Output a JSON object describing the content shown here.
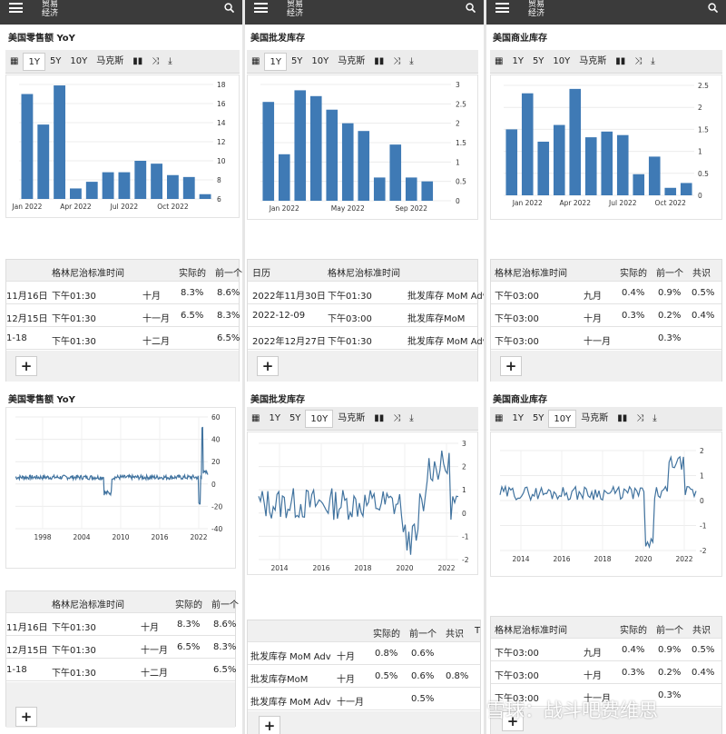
{
  "topbar": {
    "line1": "贸易",
    "line2": "经济"
  },
  "toolbar": {
    "y1": "1Y",
    "y5": "5Y",
    "y10": "10Y",
    "max": "马克斯"
  },
  "add_label": "+",
  "watermark": "雪球：战斗吧费维思",
  "colors": {
    "bar": "#3f7ab5",
    "line": "#41739f",
    "header": "#3b3b3b"
  },
  "p1": {
    "title": "美国零售额 YoY",
    "chart_data": {
      "type": "bar",
      "categories": [
        "Jan 2022",
        "Feb 2022",
        "Mar 2022",
        "Apr 2022",
        "May 2022",
        "Jun 2022",
        "Jul 2022",
        "Aug 2022",
        "Sep 2022",
        "Oct 2022",
        "Nov 2022",
        "Dec 2022"
      ],
      "values": [
        17.0,
        13.8,
        17.9,
        7.1,
        7.8,
        8.8,
        8.8,
        10.0,
        9.7,
        8.5,
        8.3,
        6.5
      ],
      "xticks": [
        "Jan 2022",
        "Apr 2022",
        "Jul 2022",
        "Oct 2022"
      ],
      "yticks": [
        "18",
        "16",
        "14",
        "12",
        "10",
        "8",
        "6"
      ],
      "ylim": [
        6,
        18
      ]
    },
    "table": {
      "header": [
        "格林尼治标准时间",
        "实际的",
        "前一个"
      ],
      "rows": [
        [
          "11月16日",
          "下午01:30",
          "十月",
          "8.3%",
          "8.6%"
        ],
        [
          "12月15日",
          "下午01:30",
          "十一月",
          "6.5%",
          "8.3%"
        ],
        [
          "1-18",
          "下午01:30",
          "十二月",
          "",
          "6.5%"
        ]
      ]
    }
  },
  "p2": {
    "title": "美国批发库存",
    "chart_data": {
      "type": "bar",
      "categories": [
        "Dec 2021",
        "Jan 2022",
        "Feb 2022",
        "Mar 2022",
        "Apr 2022",
        "May 2022",
        "Jun 2022",
        "Jul 2022",
        "Aug 2022",
        "Sep 2022",
        "Oct 2022",
        "Nov 2022"
      ],
      "values": [
        2.55,
        1.2,
        2.85,
        2.7,
        2.35,
        2.0,
        1.8,
        0.6,
        1.45,
        0.6,
        0.5,
        0.0
      ],
      "xticks": [
        "Jan 2022",
        "May 2022",
        "Sep 2022"
      ],
      "yticks": [
        "3",
        "2.5",
        "2",
        "1.5",
        "1",
        "0.5",
        "0"
      ],
      "ylim": [
        0,
        3
      ]
    },
    "table": {
      "header": [
        "日历",
        "格林尼治标准时间"
      ],
      "rows": [
        [
          "2022年11月30日",
          "下午01:30",
          "批发库存 MoM Adv"
        ],
        [
          "2022-12-09",
          "下午03:00",
          "批发库存MoM"
        ],
        [
          "2022年12月27日",
          "下午01:30",
          "批发库存 MoM Adv"
        ]
      ]
    }
  },
  "p3": {
    "title": "美国商业库存",
    "chart_data": {
      "type": "bar",
      "categories": [
        "Dec 2021",
        "Jan 2022",
        "Feb 2022",
        "Mar 2022",
        "Apr 2022",
        "May 2022",
        "Jun 2022",
        "Jul 2022",
        "Aug 2022",
        "Sep 2022",
        "Oct 2022",
        "Nov 2022"
      ],
      "values": [
        1.5,
        2.32,
        1.22,
        1.6,
        2.42,
        1.32,
        1.45,
        1.37,
        0.48,
        0.88,
        0.17,
        0.28
      ],
      "xticks": [
        "Jan 2022",
        "Apr 2022",
        "Jul 2022",
        "Oct 2022"
      ],
      "yticks": [
        "2.5",
        "2",
        "1.5",
        "1",
        "0.5",
        "0"
      ],
      "ylim": [
        0,
        2.5
      ]
    },
    "table": {
      "header": [
        "格林尼治标准时间",
        "实际的",
        "前一个",
        "共识"
      ],
      "rows": [
        [
          "下午03:00",
          "九月",
          "0.4%",
          "0.9%",
          "0.5%"
        ],
        [
          "下午03:00",
          "十月",
          "0.3%",
          "0.2%",
          "0.4%"
        ],
        [
          "下午03:00",
          "十一月",
          "",
          "0.3%",
          ""
        ]
      ]
    }
  },
  "p4": {
    "title": "美国零售额 YoY",
    "chart_data": {
      "type": "line",
      "xticks": [
        "1998",
        "2004",
        "2010",
        "2016",
        "2022"
      ],
      "yticks": [
        "60",
        "40",
        "20",
        "0",
        "-20",
        "-40"
      ],
      "ylim": [
        -40,
        60
      ]
    },
    "table": {
      "header": [
        "格林尼治标准时间",
        "实际的",
        "前一个"
      ],
      "rows": [
        [
          "11月16日",
          "下午01:30",
          "十月",
          "8.3%",
          "8.6%"
        ],
        [
          "12月15日",
          "下午01:30",
          "十一月",
          "6.5%",
          "8.3%"
        ],
        [
          "1-18",
          "下午01:30",
          "十二月",
          "",
          "6.5%"
        ]
      ]
    }
  },
  "p5": {
    "title": "美国批发库存",
    "chart_data": {
      "type": "line",
      "xticks": [
        "2014",
        "2016",
        "2018",
        "2020",
        "2022"
      ],
      "yticks": [
        "3",
        "2",
        "1",
        "0",
        "-1",
        "-2"
      ],
      "ylim": [
        -2,
        3
      ]
    },
    "table": {
      "header": [
        "实际的",
        "前一个",
        "共识",
        "T"
      ],
      "rows": [
        [
          "批发库存 MoM Adv",
          "十月",
          "0.8%",
          "0.6%",
          ""
        ],
        [
          "批发库存MoM",
          "十月",
          "0.5%",
          "0.6%",
          "0.8%"
        ],
        [
          "批发库存 MoM Adv",
          "十一月",
          "",
          "0.5%",
          ""
        ]
      ]
    }
  },
  "p6": {
    "title": "美国商业库存",
    "chart_data": {
      "type": "line",
      "xticks": [
        "2014",
        "2016",
        "2018",
        "2020",
        "2022"
      ],
      "yticks": [
        "2",
        "1",
        "0",
        "-1",
        "-2"
      ],
      "ylim": [
        -2,
        2
      ]
    },
    "table": {
      "header": [
        "格林尼治标准时间",
        "实际的",
        "前一个",
        "共识"
      ],
      "rows": [
        [
          "下午03:00",
          "九月",
          "0.4%",
          "0.9%",
          "0.5%"
        ],
        [
          "下午03:00",
          "十月",
          "0.3%",
          "0.2%",
          "0.4%"
        ],
        [
          "下午03:00",
          "十一月",
          "",
          "0.3%",
          ""
        ]
      ]
    }
  }
}
